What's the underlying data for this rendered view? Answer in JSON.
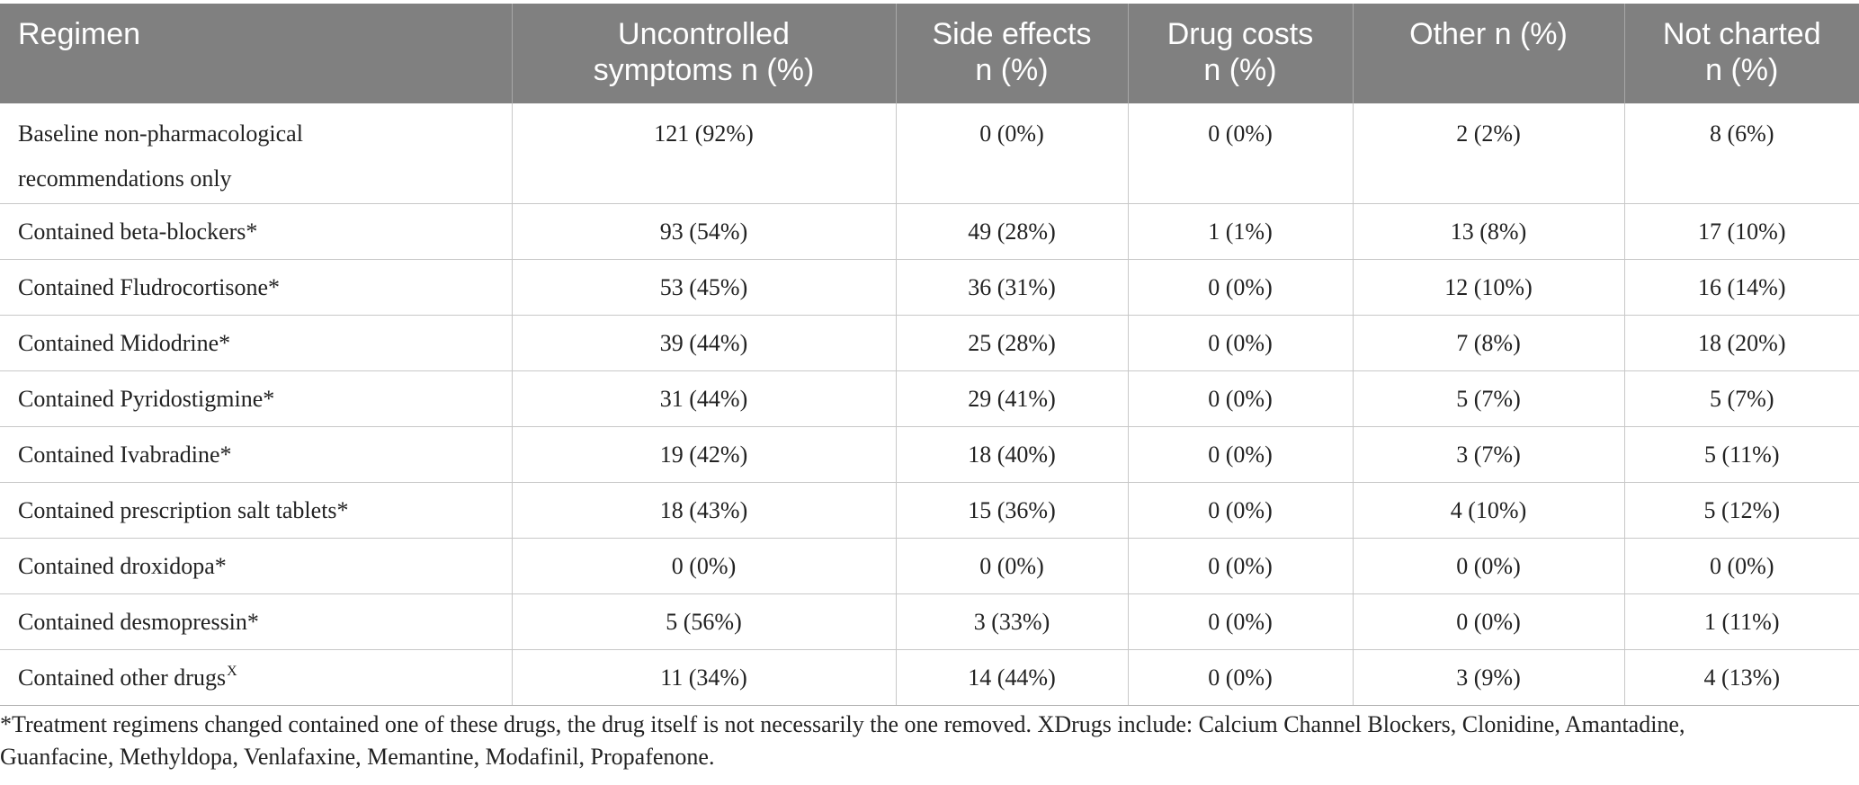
{
  "table": {
    "headers": [
      "Regimen",
      "Uncontrolled symptoms n (%)",
      "Side effects n (%)",
      "Drug costs n (%)",
      "Other n (%)",
      "Not charted n (%)"
    ],
    "header_lines": [
      [
        "Regimen"
      ],
      [
        "Uncontrolled",
        "symptoms n (%)"
      ],
      [
        "Side effects",
        "n (%)"
      ],
      [
        "Drug costs",
        "n (%)"
      ],
      [
        "Other n (%)"
      ],
      [
        "Not charted",
        "n (%)"
      ]
    ],
    "rows": [
      {
        "regimen_lines": [
          "Baseline non-pharmacological",
          "recommendations only"
        ],
        "cells": [
          "121 (92%)",
          "0 (0%)",
          "0 (0%)",
          "2 (2%)",
          "8 (6%)"
        ]
      },
      {
        "regimen": "Contained beta-blockers*",
        "cells": [
          "93 (54%)",
          "49 (28%)",
          "1 (1%)",
          "13 (8%)",
          "17 (10%)"
        ]
      },
      {
        "regimen": "Contained Fludrocortisone*",
        "cells": [
          "53 (45%)",
          "36 (31%)",
          "0 (0%)",
          "12 (10%)",
          "16 (14%)"
        ]
      },
      {
        "regimen": "Contained Midodrine*",
        "cells": [
          "39 (44%)",
          "25 (28%)",
          "0 (0%)",
          "7 (8%)",
          "18 (20%)"
        ]
      },
      {
        "regimen": "Contained Pyridostigmine*",
        "cells": [
          "31 (44%)",
          "29 (41%)",
          "0 (0%)",
          "5 (7%)",
          "5 (7%)"
        ]
      },
      {
        "regimen": "Contained Ivabradine*",
        "cells": [
          "19 (42%)",
          "18 (40%)",
          "0 (0%)",
          "3 (7%)",
          "5 (11%)"
        ]
      },
      {
        "regimen": "Contained prescription salt tablets*",
        "cells": [
          "18 (43%)",
          "15 (36%)",
          "0 (0%)",
          "4 (10%)",
          "5 (12%)"
        ]
      },
      {
        "regimen": "Contained droxidopa*",
        "cells": [
          "0 (0%)",
          "0 (0%)",
          "0 (0%)",
          "0 (0%)",
          "0 (0%)"
        ]
      },
      {
        "regimen": "Contained desmopressin*",
        "cells": [
          "5 (56%)",
          "3 (33%)",
          "0 (0%)",
          "0 (0%)",
          "1 (11%)"
        ]
      },
      {
        "regimen": "Contained other drugs",
        "regimen_sup": "X",
        "cells": [
          "11 (34%)",
          "14 (44%)",
          "0 (0%)",
          "3 (9%)",
          "4 (13%)"
        ]
      }
    ]
  },
  "footnote": {
    "line1": "*Treatment regimens changed contained one of these drugs, the drug itself is not necessarily the one removed. XDrugs include: Calcium Channel Blockers, Clonidine, Amantadine,",
    "line2": "Guanfacine, Methyldopa, Venlafaxine, Memantine, Modafinil, Propafenone."
  }
}
